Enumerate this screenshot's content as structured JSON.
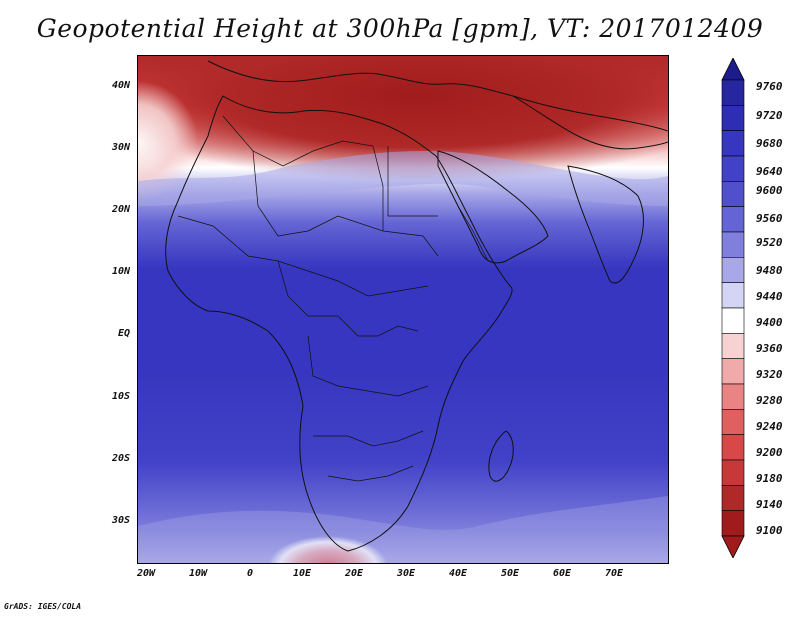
{
  "title": "Geopotential Height at 300hPa [gpm], VT: 2017012409",
  "credit": "GrADS: IGES/COLA",
  "map": {
    "lat_labels": [
      "40N",
      "30N",
      "20N",
      "10N",
      "EQ",
      "10S",
      "20S",
      "30S"
    ],
    "lon_labels": [
      "20W",
      "10W",
      "0",
      "10E",
      "20E",
      "30E",
      "40E",
      "50E",
      "60E",
      "70E"
    ],
    "lat_range": [
      -37,
      45
    ],
    "lon_range": [
      -22,
      80
    ]
  },
  "colorbar": {
    "levels": [
      "9760",
      "9720",
      "9680",
      "9640",
      "9600",
      "9560",
      "9520",
      "9480",
      "9440",
      "9400",
      "9360",
      "9320",
      "9280",
      "9240",
      "9200",
      "9180",
      "9140",
      "9100"
    ],
    "colors": [
      "#1c1c8c",
      "#2626a0",
      "#2e2eb4",
      "#3636c0",
      "#4242c8",
      "#5050cc",
      "#6464d4",
      "#8080dc",
      "#a8a8e8",
      "#d4d4f4",
      "#ffffff",
      "#f6d2d2",
      "#f0aaaa",
      "#e88484",
      "#e06060",
      "#d84848",
      "#c83838",
      "#b02828",
      "#a01c1c"
    ]
  }
}
